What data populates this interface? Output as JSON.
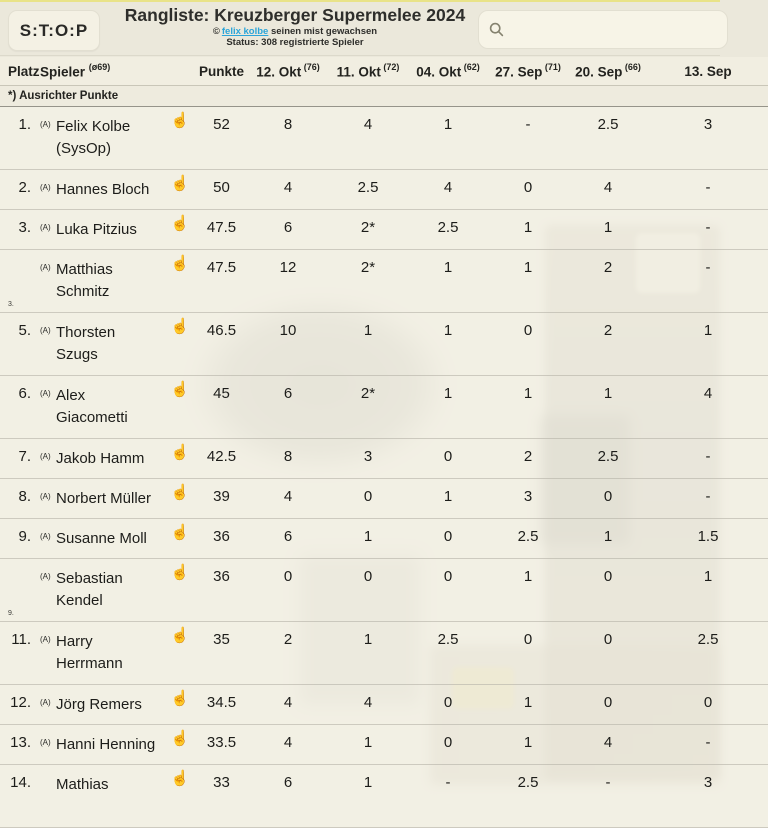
{
  "header": {
    "logo": "S:T:O:P",
    "title": "Rangliste: Kreuzberger Supermelee 2024",
    "byline_icon": "©",
    "byline_link": "felix kolbe",
    "byline_rest": " seinen mist gewachsen",
    "status": "Status: 308 registrierte Spieler",
    "search_placeholder": ""
  },
  "table": {
    "col_platz": "Platz",
    "col_spieler": "Spieler",
    "col_spieler_sup": "(ø69)",
    "col_punkte": "Punkte",
    "date_columns": [
      {
        "label": "12. Okt",
        "sup": "(76)"
      },
      {
        "label": "11. Okt",
        "sup": "(72)"
      },
      {
        "label": "04. Okt",
        "sup": "(62)"
      },
      {
        "label": "27. Sep",
        "sup": "(71)"
      },
      {
        "label": "20. Sep",
        "sup": "(66)"
      },
      {
        "label": "13. Sep",
        "sup": ""
      }
    ],
    "note": "*) Ausrichter Punkte",
    "hand_icon": "☝",
    "rows": [
      {
        "rank": "1.",
        "rank_small": false,
        "annotation": "(A)",
        "name_lines": [
          "Felix Kolbe",
          "(SysOp)"
        ],
        "points": "52",
        "scores": [
          "8",
          "4",
          "1",
          "-",
          "2.5",
          "3"
        ]
      },
      {
        "rank": "2.",
        "rank_small": false,
        "annotation": "(A)",
        "name_lines": [
          "Hannes Bloch"
        ],
        "points": "50",
        "scores": [
          "4",
          "2.5",
          "4",
          "0",
          "4",
          "-"
        ]
      },
      {
        "rank": "3.",
        "rank_small": false,
        "annotation": "(A)",
        "name_lines": [
          "Luka Pitzius"
        ],
        "points": "47.5",
        "scores": [
          "6",
          "2*",
          "2.5",
          "1",
          "1",
          "-"
        ]
      },
      {
        "rank": "3.",
        "rank_small": true,
        "annotation": "(A)",
        "name_lines": [
          "Matthias",
          "Schmitz"
        ],
        "points": "47.5",
        "scores": [
          "12",
          "2*",
          "1",
          "1",
          "2",
          "-"
        ]
      },
      {
        "rank": "5.",
        "rank_small": false,
        "annotation": "(A)",
        "name_lines": [
          "Thorsten",
          "Szugs"
        ],
        "points": "46.5",
        "scores": [
          "10",
          "1",
          "1",
          "0",
          "2",
          "1"
        ]
      },
      {
        "rank": "6.",
        "rank_small": false,
        "annotation": "(A)",
        "name_lines": [
          "Alex",
          "Giacometti"
        ],
        "points": "45",
        "scores": [
          "6",
          "2*",
          "1",
          "1",
          "1",
          "4"
        ]
      },
      {
        "rank": "7.",
        "rank_small": false,
        "annotation": "(A)",
        "name_lines": [
          "Jakob Hamm"
        ],
        "points": "42.5",
        "scores": [
          "8",
          "3",
          "0",
          "2",
          "2.5",
          "-"
        ]
      },
      {
        "rank": "8.",
        "rank_small": false,
        "annotation": "(A)",
        "name_lines": [
          "Norbert Müller"
        ],
        "points": "39",
        "scores": [
          "4",
          "0",
          "1",
          "3",
          "0",
          "-"
        ]
      },
      {
        "rank": "9.",
        "rank_small": false,
        "annotation": "(A)",
        "name_lines": [
          "Susanne Moll"
        ],
        "points": "36",
        "scores": [
          "6",
          "1",
          "0",
          "2.5",
          "1",
          "1.5"
        ]
      },
      {
        "rank": "9.",
        "rank_small": true,
        "annotation": "(A)",
        "name_lines": [
          "Sebastian",
          "Kendel"
        ],
        "points": "36",
        "scores": [
          "0",
          "0",
          "0",
          "1",
          "0",
          "1"
        ]
      },
      {
        "rank": "11.",
        "rank_small": false,
        "annotation": "(A)",
        "name_lines": [
          "Harry",
          "Herrmann"
        ],
        "points": "35",
        "scores": [
          "2",
          "1",
          "2.5",
          "0",
          "0",
          "2.5"
        ]
      },
      {
        "rank": "12.",
        "rank_small": false,
        "annotation": "(A)",
        "name_lines": [
          "Jörg Remers"
        ],
        "points": "34.5",
        "scores": [
          "4",
          "4",
          "0",
          "1",
          "0",
          "0"
        ]
      },
      {
        "rank": "13.",
        "rank_small": false,
        "annotation": "(A)",
        "name_lines": [
          "Hanni Henning"
        ],
        "points": "33.5",
        "scores": [
          "4",
          "1",
          "0",
          "1",
          "4",
          "-"
        ]
      },
      {
        "rank": "14.",
        "rank_small": false,
        "annotation": "",
        "name_lines": [
          "Mathias",
          ""
        ],
        "points": "33",
        "scores": [
          "6",
          "1",
          "-",
          "2.5",
          "-",
          "3"
        ]
      }
    ]
  },
  "colors": {
    "page_bg": "#ebe8db",
    "top_accent": "#e9e388",
    "panel_bg": "#f4f1e4",
    "link": "#2aa4d9",
    "row_bg": "rgba(243,240,229,0.88)"
  }
}
